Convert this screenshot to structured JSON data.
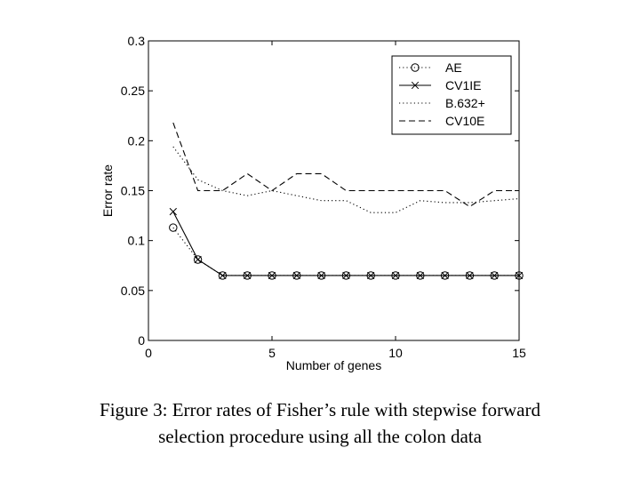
{
  "chart_data": {
    "type": "line",
    "xlabel": "Number of genes",
    "ylabel": "Error rate",
    "xlim": [
      0,
      15
    ],
    "ylim": [
      0,
      0.3
    ],
    "xticks": [
      "0",
      "5",
      "10",
      "15"
    ],
    "yticks": [
      "0",
      "0.05",
      "0.1",
      "0.15",
      "0.2",
      "0.25",
      "0.3"
    ],
    "x": [
      1,
      2,
      3,
      4,
      5,
      6,
      7,
      8,
      9,
      10,
      11,
      12,
      13,
      14,
      15
    ],
    "grid": false,
    "legend_position": "top-right",
    "series": [
      {
        "name": "AE",
        "style": "dotted-circle",
        "values": [
          0.113,
          0.081,
          0.065,
          0.065,
          0.065,
          0.065,
          0.065,
          0.065,
          0.065,
          0.065,
          0.065,
          0.065,
          0.065,
          0.065,
          0.065
        ]
      },
      {
        "name": "CV1IE",
        "style": "solid-x",
        "values": [
          0.129,
          0.081,
          0.065,
          0.065,
          0.065,
          0.065,
          0.065,
          0.065,
          0.065,
          0.065,
          0.065,
          0.065,
          0.065,
          0.065,
          0.065
        ]
      },
      {
        "name": "B.632+",
        "style": "dotted",
        "values": [
          0.194,
          0.161,
          0.15,
          0.145,
          0.15,
          0.145,
          0.14,
          0.14,
          0.128,
          0.128,
          0.14,
          0.138,
          0.138,
          0.14,
          0.142
        ]
      },
      {
        "name": "CV10E",
        "style": "dashed",
        "values": [
          0.218,
          0.15,
          0.15,
          0.167,
          0.15,
          0.167,
          0.167,
          0.15,
          0.15,
          0.15,
          0.15,
          0.15,
          0.134,
          0.15,
          0.15
        ]
      }
    ]
  },
  "caption": {
    "line1": "Figure 3: Error rates of Fisher’s rule with stepwise forward",
    "line2": "selection procedure using all the colon data"
  }
}
